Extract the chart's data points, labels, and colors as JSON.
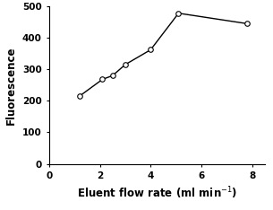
{
  "x": [
    1.2,
    2.1,
    2.5,
    3.0,
    4.0,
    5.1,
    7.8
  ],
  "y": [
    215,
    268,
    280,
    315,
    362,
    478,
    445
  ],
  "xlabel": "Eluent flow rate (ml min$^{-1}$)",
  "ylabel": "Fluorescence",
  "xlim": [
    0,
    8.5
  ],
  "ylim": [
    0,
    500
  ],
  "xticks": [
    0,
    2,
    4,
    6,
    8
  ],
  "yticks": [
    0,
    100,
    200,
    300,
    400,
    500
  ],
  "line_color": "#000000",
  "marker": "o",
  "marker_facecolor": "white",
  "marker_edgecolor": "#000000",
  "marker_size": 4,
  "line_width": 1.0,
  "label_fontsize": 8.5,
  "tick_fontsize": 7.5
}
